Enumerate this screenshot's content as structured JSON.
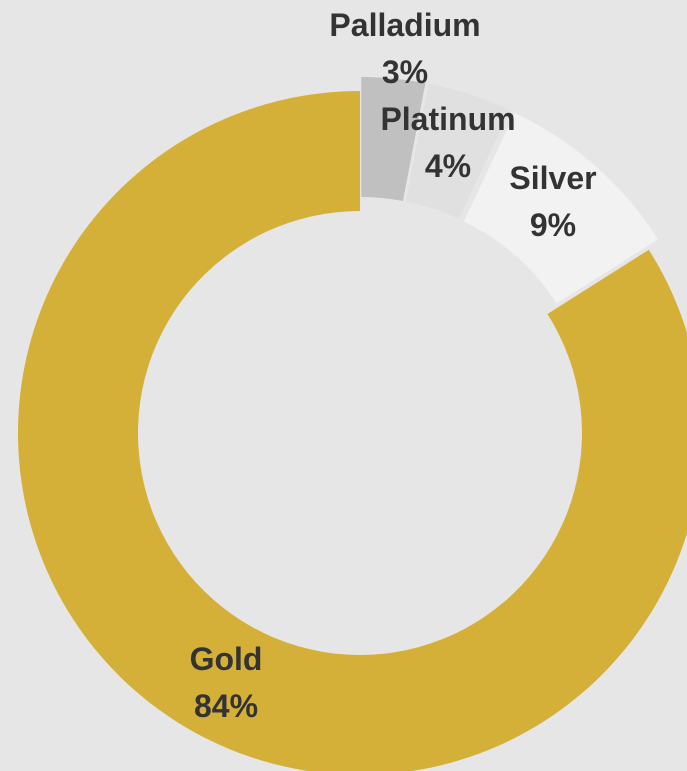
{
  "chart_data": {
    "type": "pie",
    "variant": "donut",
    "title": "",
    "slices": [
      {
        "name": "Gold",
        "value": 84,
        "pct_label": "84%",
        "color": "#d4b038",
        "exploded": false
      },
      {
        "name": "Palladium",
        "value": 3,
        "pct_label": "3%",
        "color": "#c0c0c0",
        "exploded": true
      },
      {
        "name": "Platinum",
        "value": 4,
        "pct_label": "4%",
        "color": "#e0e0e0",
        "exploded": true
      },
      {
        "name": "Silver",
        "value": 9,
        "pct_label": "9%",
        "color": "#f2f2f2",
        "exploded": true
      }
    ],
    "legend": "none",
    "background": "#e6e6e6"
  }
}
